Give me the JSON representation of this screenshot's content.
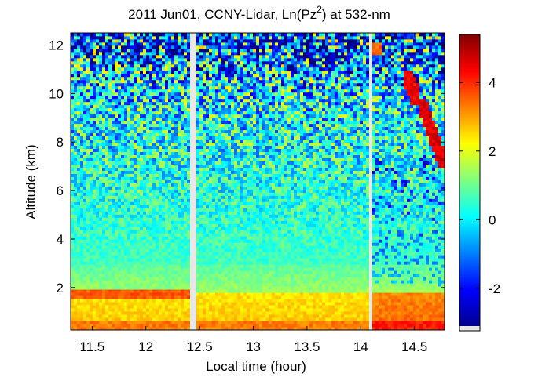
{
  "chart_data": {
    "type": "heatmap",
    "title": {
      "prefix": "2011 Jun01, CCNY-Lidar, Ln(Pz",
      "superscript": "2",
      "suffix": ") at 532-nm"
    },
    "xlabel": "Local time (hour)",
    "ylabel": "Altitude (km)",
    "xlim": [
      11.3,
      14.78
    ],
    "ylim": [
      0.25,
      12.5
    ],
    "xticks": [
      {
        "value": 11.5,
        "label": "11.5"
      },
      {
        "value": 12,
        "label": "12"
      },
      {
        "value": 12.5,
        "label": "12.5"
      },
      {
        "value": 13,
        "label": "13"
      },
      {
        "value": 13.5,
        "label": "13.5"
      },
      {
        "value": 14,
        "label": "14"
      },
      {
        "value": 14.5,
        "label": "14.5"
      }
    ],
    "yticks": [
      {
        "value": 2,
        "label": "2"
      },
      {
        "value": 4,
        "label": "4"
      },
      {
        "value": 6,
        "label": "6"
      },
      {
        "value": 8,
        "label": "8"
      },
      {
        "value": 10,
        "label": "10"
      },
      {
        "value": 12,
        "label": "12"
      }
    ],
    "colorbar": {
      "colormap": "jet",
      "range": [
        -3.1,
        5.4
      ],
      "ticks": [
        {
          "value": -2,
          "label": "-2"
        },
        {
          "value": 0,
          "label": "0"
        },
        {
          "value": 2,
          "label": "2"
        },
        {
          "value": 4,
          "label": "4"
        }
      ]
    },
    "data_gaps_hours": [
      [
        12.42,
        12.46
      ],
      [
        14.07,
        14.11
      ]
    ],
    "layers": [
      {
        "feature": "surface layer",
        "altitude_km": [
          0.25,
          0.6
        ],
        "ln_pz2": 3.3
      },
      {
        "feature": "boundary layer",
        "altitude_km": [
          0.6,
          1.8
        ],
        "ln_pz2": 2.4
      },
      {
        "feature": "boundary layer top",
        "time": [
          11.3,
          12.42
        ],
        "altitude_km": 1.75,
        "ln_pz2": 3.6
      },
      {
        "feature": "transition zone",
        "altitude_km": [
          1.8,
          3.0
        ],
        "ln_pz2": 1.4
      },
      {
        "feature": "free troposphere",
        "altitude_km": [
          3.0,
          12.5
        ],
        "ln_pz2": 0.3
      }
    ],
    "cloud_features": [
      {
        "time": [
          14.1,
          14.2
        ],
        "altitude_km": [
          11.6,
          12.1
        ],
        "ln_pz2": 3.5
      },
      {
        "time": [
          14.4,
          14.55
        ],
        "altitude_km": [
          9.5,
          11.0
        ],
        "ln_pz2": 4.5
      },
      {
        "time": [
          14.55,
          14.78
        ],
        "altitude_km": [
          7.0,
          9.8
        ],
        "ln_pz2": 4.6
      }
    ]
  }
}
